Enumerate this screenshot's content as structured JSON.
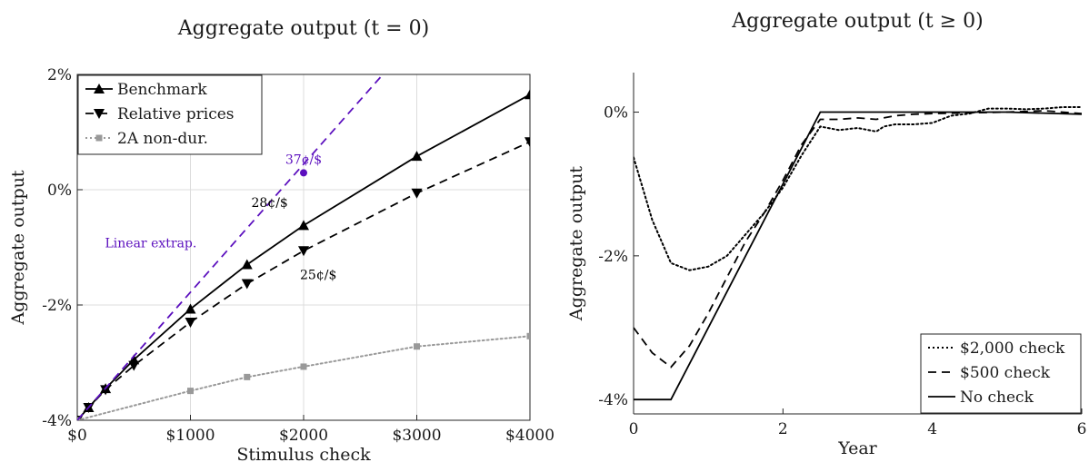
{
  "chart_data": [
    {
      "type": "line",
      "title": "Aggregate output (t = 0)",
      "xlabel": "Stimulus check",
      "ylabel": "Aggregate output",
      "xlim": [
        0,
        4000
      ],
      "ylim": [
        -4,
        2
      ],
      "grid": true,
      "legend_position": "top-left",
      "x_ticks": [
        0,
        1000,
        2000,
        3000,
        4000
      ],
      "x_tick_labels": [
        "$0",
        "$1000",
        "$2000",
        "$3000",
        "$4000"
      ],
      "y_ticks": [
        -4,
        -2,
        0,
        2
      ],
      "y_tick_labels": [
        "-4%",
        "-2%",
        "0%",
        "2%"
      ],
      "series": [
        {
          "name": "Benchmark",
          "color": "#000000",
          "line_style": "solid",
          "marker": "triangle-up",
          "x": [
            0,
            100,
            250,
            500,
            1000,
            1500,
            2000,
            3000,
            4000
          ],
          "y": [
            -4.0,
            -3.78,
            -3.45,
            -2.95,
            -2.07,
            -1.3,
            -0.62,
            0.58,
            1.65
          ]
        },
        {
          "name": "Relative prices",
          "color": "#000000",
          "line_style": "dashed",
          "marker": "triangle-down",
          "x": [
            0,
            100,
            250,
            500,
            1000,
            1500,
            2000,
            3000,
            4000
          ],
          "y": [
            -4.0,
            -3.78,
            -3.47,
            -3.05,
            -2.3,
            -1.63,
            -1.06,
            -0.06,
            0.83
          ]
        },
        {
          "name": "2A non-dur.",
          "color": "#999999",
          "line_style": "dotted",
          "marker": "square",
          "x": [
            0,
            1000,
            1500,
            2000,
            3000,
            4000
          ],
          "y": [
            -4.0,
            -3.49,
            -3.25,
            -3.07,
            -2.72,
            -2.54
          ]
        },
        {
          "name": "",
          "color": "#5b0fbe",
          "line_style": "dashed",
          "marker": "none",
          "x": [
            0,
            2700
          ],
          "y": [
            -4.0,
            2.0
          ]
        }
      ],
      "annotations": [
        {
          "text": "37¢/$",
          "x": 2000,
          "y": 0.45,
          "color": "#5b0fbe"
        },
        {
          "text": "28¢/$",
          "x": 1700,
          "y": -0.3,
          "color": "#000000"
        },
        {
          "text": "25¢/$",
          "x": 2130,
          "y": -1.55,
          "color": "#000000"
        },
        {
          "text": "Linear extrap.",
          "x": 650,
          "y": -1.0,
          "color": "#5b0fbe"
        }
      ],
      "highlight_point": {
        "x": 2000,
        "y": 0.45,
        "color": "#5b0fbe"
      }
    },
    {
      "type": "line",
      "title": "Aggregate output (t ≥ 0)",
      "xlabel": "Year",
      "ylabel": "Aggregate output",
      "xlim": [
        0,
        6
      ],
      "ylim": [
        -4.2,
        0.55
      ],
      "grid": false,
      "legend_position": "bottom-right",
      "x_ticks": [
        0,
        2,
        4,
        6
      ],
      "x_tick_labels": [
        "0",
        "2",
        "4",
        "6"
      ],
      "y_ticks": [
        -4,
        -2,
        0
      ],
      "y_tick_labels": [
        "-4%",
        "-2%",
        "0%"
      ],
      "series": [
        {
          "name": "$2,000 check",
          "color": "#000000",
          "line_style": "dotted",
          "x": [
            0,
            0.25,
            0.5,
            0.75,
            1.0,
            1.25,
            1.5,
            1.75,
            2.0,
            2.25,
            2.5,
            2.75,
            3.0,
            3.25,
            3.35,
            3.5,
            3.75,
            4.0,
            4.25,
            4.5,
            4.75,
            5.0,
            5.25,
            5.5,
            5.75,
            6.0
          ],
          "y": [
            -0.63,
            -1.5,
            -2.1,
            -2.2,
            -2.15,
            -2.0,
            -1.7,
            -1.4,
            -1.05,
            -0.6,
            -0.2,
            -0.25,
            -0.22,
            -0.27,
            -0.2,
            -0.17,
            -0.17,
            -0.15,
            -0.05,
            -0.02,
            0.05,
            0.05,
            0.04,
            0.05,
            0.07,
            0.07
          ]
        },
        {
          "name": "$500 check",
          "color": "#000000",
          "line_style": "dashed",
          "x": [
            0,
            0.25,
            0.5,
            0.75,
            1.0,
            1.25,
            1.5,
            1.75,
            2.0,
            2.25,
            2.5,
            2.75,
            3.0,
            3.25,
            3.5,
            3.75,
            4.0,
            4.5,
            5.0,
            5.5,
            6.0
          ],
          "y": [
            -3.0,
            -3.35,
            -3.55,
            -3.25,
            -2.8,
            -2.3,
            -1.8,
            -1.4,
            -0.95,
            -0.45,
            -0.1,
            -0.1,
            -0.08,
            -0.1,
            -0.05,
            -0.03,
            -0.02,
            -0.01,
            0.0,
            0.02,
            -0.02
          ]
        },
        {
          "name": "No check",
          "color": "#000000",
          "line_style": "solid",
          "x": [
            0,
            0.5,
            2.5,
            3.0,
            4.0,
            5.0,
            6.0
          ],
          "y": [
            -4.0,
            -4.0,
            0.0,
            0.0,
            0.0,
            0.0,
            -0.03
          ]
        }
      ]
    }
  ]
}
